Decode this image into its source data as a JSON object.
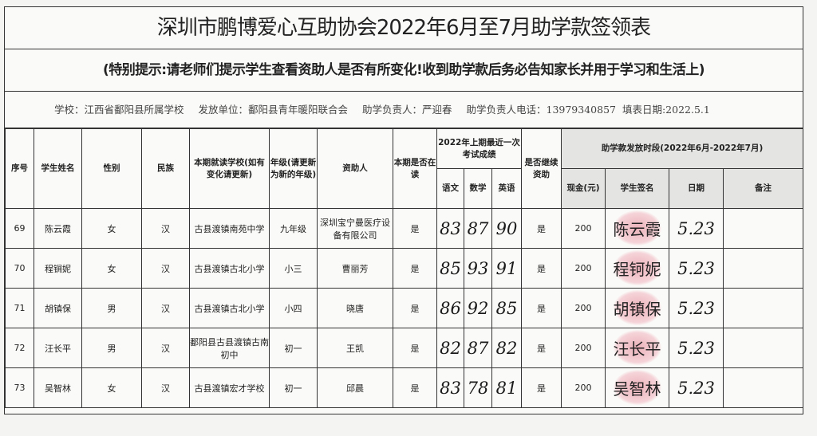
{
  "title": "深圳市鹏博爱心互助协会2022年6月至7月助学款签领表",
  "notice": "(特别提示:请老师们提示学生查看资助人是否有所变化!收到助学款后务必告知家长并用于学习和生活上)",
  "info": {
    "school": "学校：江西省鄱阳县所属学校",
    "issuer": "发放单位：鄱阳县青年暖阳联合会",
    "manager": "助学负责人：严迎春",
    "phone": "助学负责人电话：13979340857",
    "date": "填表日期:2022.5.1"
  },
  "headers": {
    "no": "序号",
    "name": "学生姓名",
    "gender": "性别",
    "ethnicity": "民族",
    "school": "本期就读学校(如有变化请更新)",
    "grade": "年级(请更新为新的年级)",
    "sponsor": "资助人",
    "enrolled": "本期是否在读",
    "scores": "2022年上期最近一次考试成绩",
    "chinese": "语文",
    "math": "数学",
    "english": "英语",
    "continue": "是否继续资助",
    "period": "助学款发放时段(2022年6月-2022年7月)",
    "cash": "现金(元)",
    "signature": "学生签名",
    "date": "日期",
    "remark": "备注"
  },
  "rows": [
    {
      "no": "69",
      "name": "陈云霞",
      "gender": "女",
      "ethnicity": "汉",
      "school": "古县渡镇南苑中学",
      "grade": "九年级",
      "sponsor": "深圳宝宁曼医疗设备有限公司",
      "enrolled": "是",
      "chinese": "83",
      "math": "87",
      "english": "90",
      "continue": "是",
      "cash": "200",
      "signature": "陈云霞",
      "date": "5.23",
      "remark": ""
    },
    {
      "no": "70",
      "name": "程锎妮",
      "gender": "女",
      "ethnicity": "汉",
      "school": "古县渡镇古北小学",
      "grade": "小三",
      "sponsor": "曹丽芳",
      "enrolled": "是",
      "chinese": "85",
      "math": "93",
      "english": "91",
      "continue": "是",
      "cash": "200",
      "signature": "程钶妮",
      "date": "5.23",
      "remark": ""
    },
    {
      "no": "71",
      "name": "胡镇保",
      "gender": "男",
      "ethnicity": "汉",
      "school": "古县渡镇古北小学",
      "grade": "小四",
      "sponsor": "晓唐",
      "enrolled": "是",
      "chinese": "86",
      "math": "92",
      "english": "85",
      "continue": "是",
      "cash": "200",
      "signature": "胡镇保",
      "date": "5.23",
      "remark": ""
    },
    {
      "no": "72",
      "name": "汪长平",
      "gender": "男",
      "ethnicity": "汉",
      "school": "鄱阳县古县渡镇古南初中",
      "grade": "初一",
      "sponsor": "王凯",
      "enrolled": "是",
      "chinese": "82",
      "math": "87",
      "english": "82",
      "continue": "是",
      "cash": "200",
      "signature": "汪长平",
      "date": "5.23",
      "remark": ""
    },
    {
      "no": "73",
      "name": "吴智林",
      "gender": "女",
      "ethnicity": "汉",
      "school": "古县渡镇宏才学校",
      "grade": "初一",
      "sponsor": "邱晨",
      "enrolled": "是",
      "chinese": "83",
      "math": "78",
      "english": "81",
      "continue": "是",
      "cash": "200",
      "signature": "吴智林",
      "date": "5.23",
      "remark": ""
    }
  ]
}
